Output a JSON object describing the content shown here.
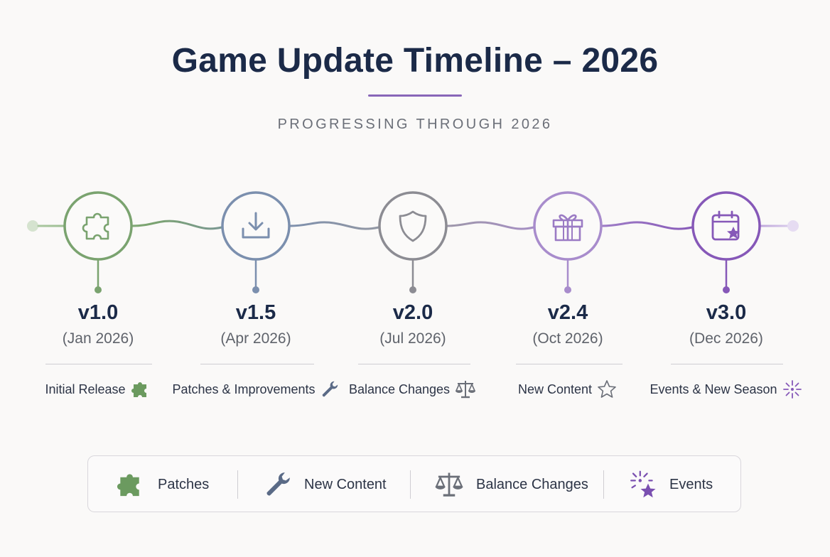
{
  "header": {
    "title": "Game Update Timeline – 2026",
    "subtitle": "PROGRESSING THROUGH 2026"
  },
  "milestones": [
    {
      "version": "v1.0",
      "date": "(Jan 2026)",
      "caption": "Initial Release",
      "node_icon": "puzzle-icon",
      "caption_icon": "puzzle-icon",
      "color": "#7aa36f"
    },
    {
      "version": "v1.5",
      "date": "(Apr 2026)",
      "caption": "Patches & Improvements",
      "node_icon": "download-icon",
      "caption_icon": "wrench-icon",
      "color": "#7b8fae"
    },
    {
      "version": "v2.0",
      "date": "(Jul 2026)",
      "caption": "Balance Changes",
      "node_icon": "shield-icon",
      "caption_icon": "scales-icon",
      "color": "#8c8c93"
    },
    {
      "version": "v2.4",
      "date": "(Oct 2026)",
      "caption": "New Content",
      "node_icon": "gift-icon",
      "caption_icon": "star-icon",
      "color": "#9b7bc4"
    },
    {
      "version": "v3.0",
      "date": "(Dec 2026)",
      "caption": "Events & New Season",
      "node_icon": "calendar-star-icon",
      "caption_icon": "firework-icon",
      "color": "#8658b8"
    }
  ],
  "legend": [
    {
      "label": "Patches",
      "icon": "puzzle-icon",
      "color": "#6b9a5f"
    },
    {
      "label": "New Content",
      "icon": "wrench-icon",
      "color": "#5a6a86"
    },
    {
      "label": "Balance Changes",
      "icon": "scales-icon",
      "color": "#6b6f78"
    },
    {
      "label": "Events",
      "icon": "firework-icon",
      "color": "#7a4fb0"
    }
  ],
  "colors": {
    "title": "#1b2a48",
    "accent": "#8866b8",
    "background": "#faf9f8"
  }
}
